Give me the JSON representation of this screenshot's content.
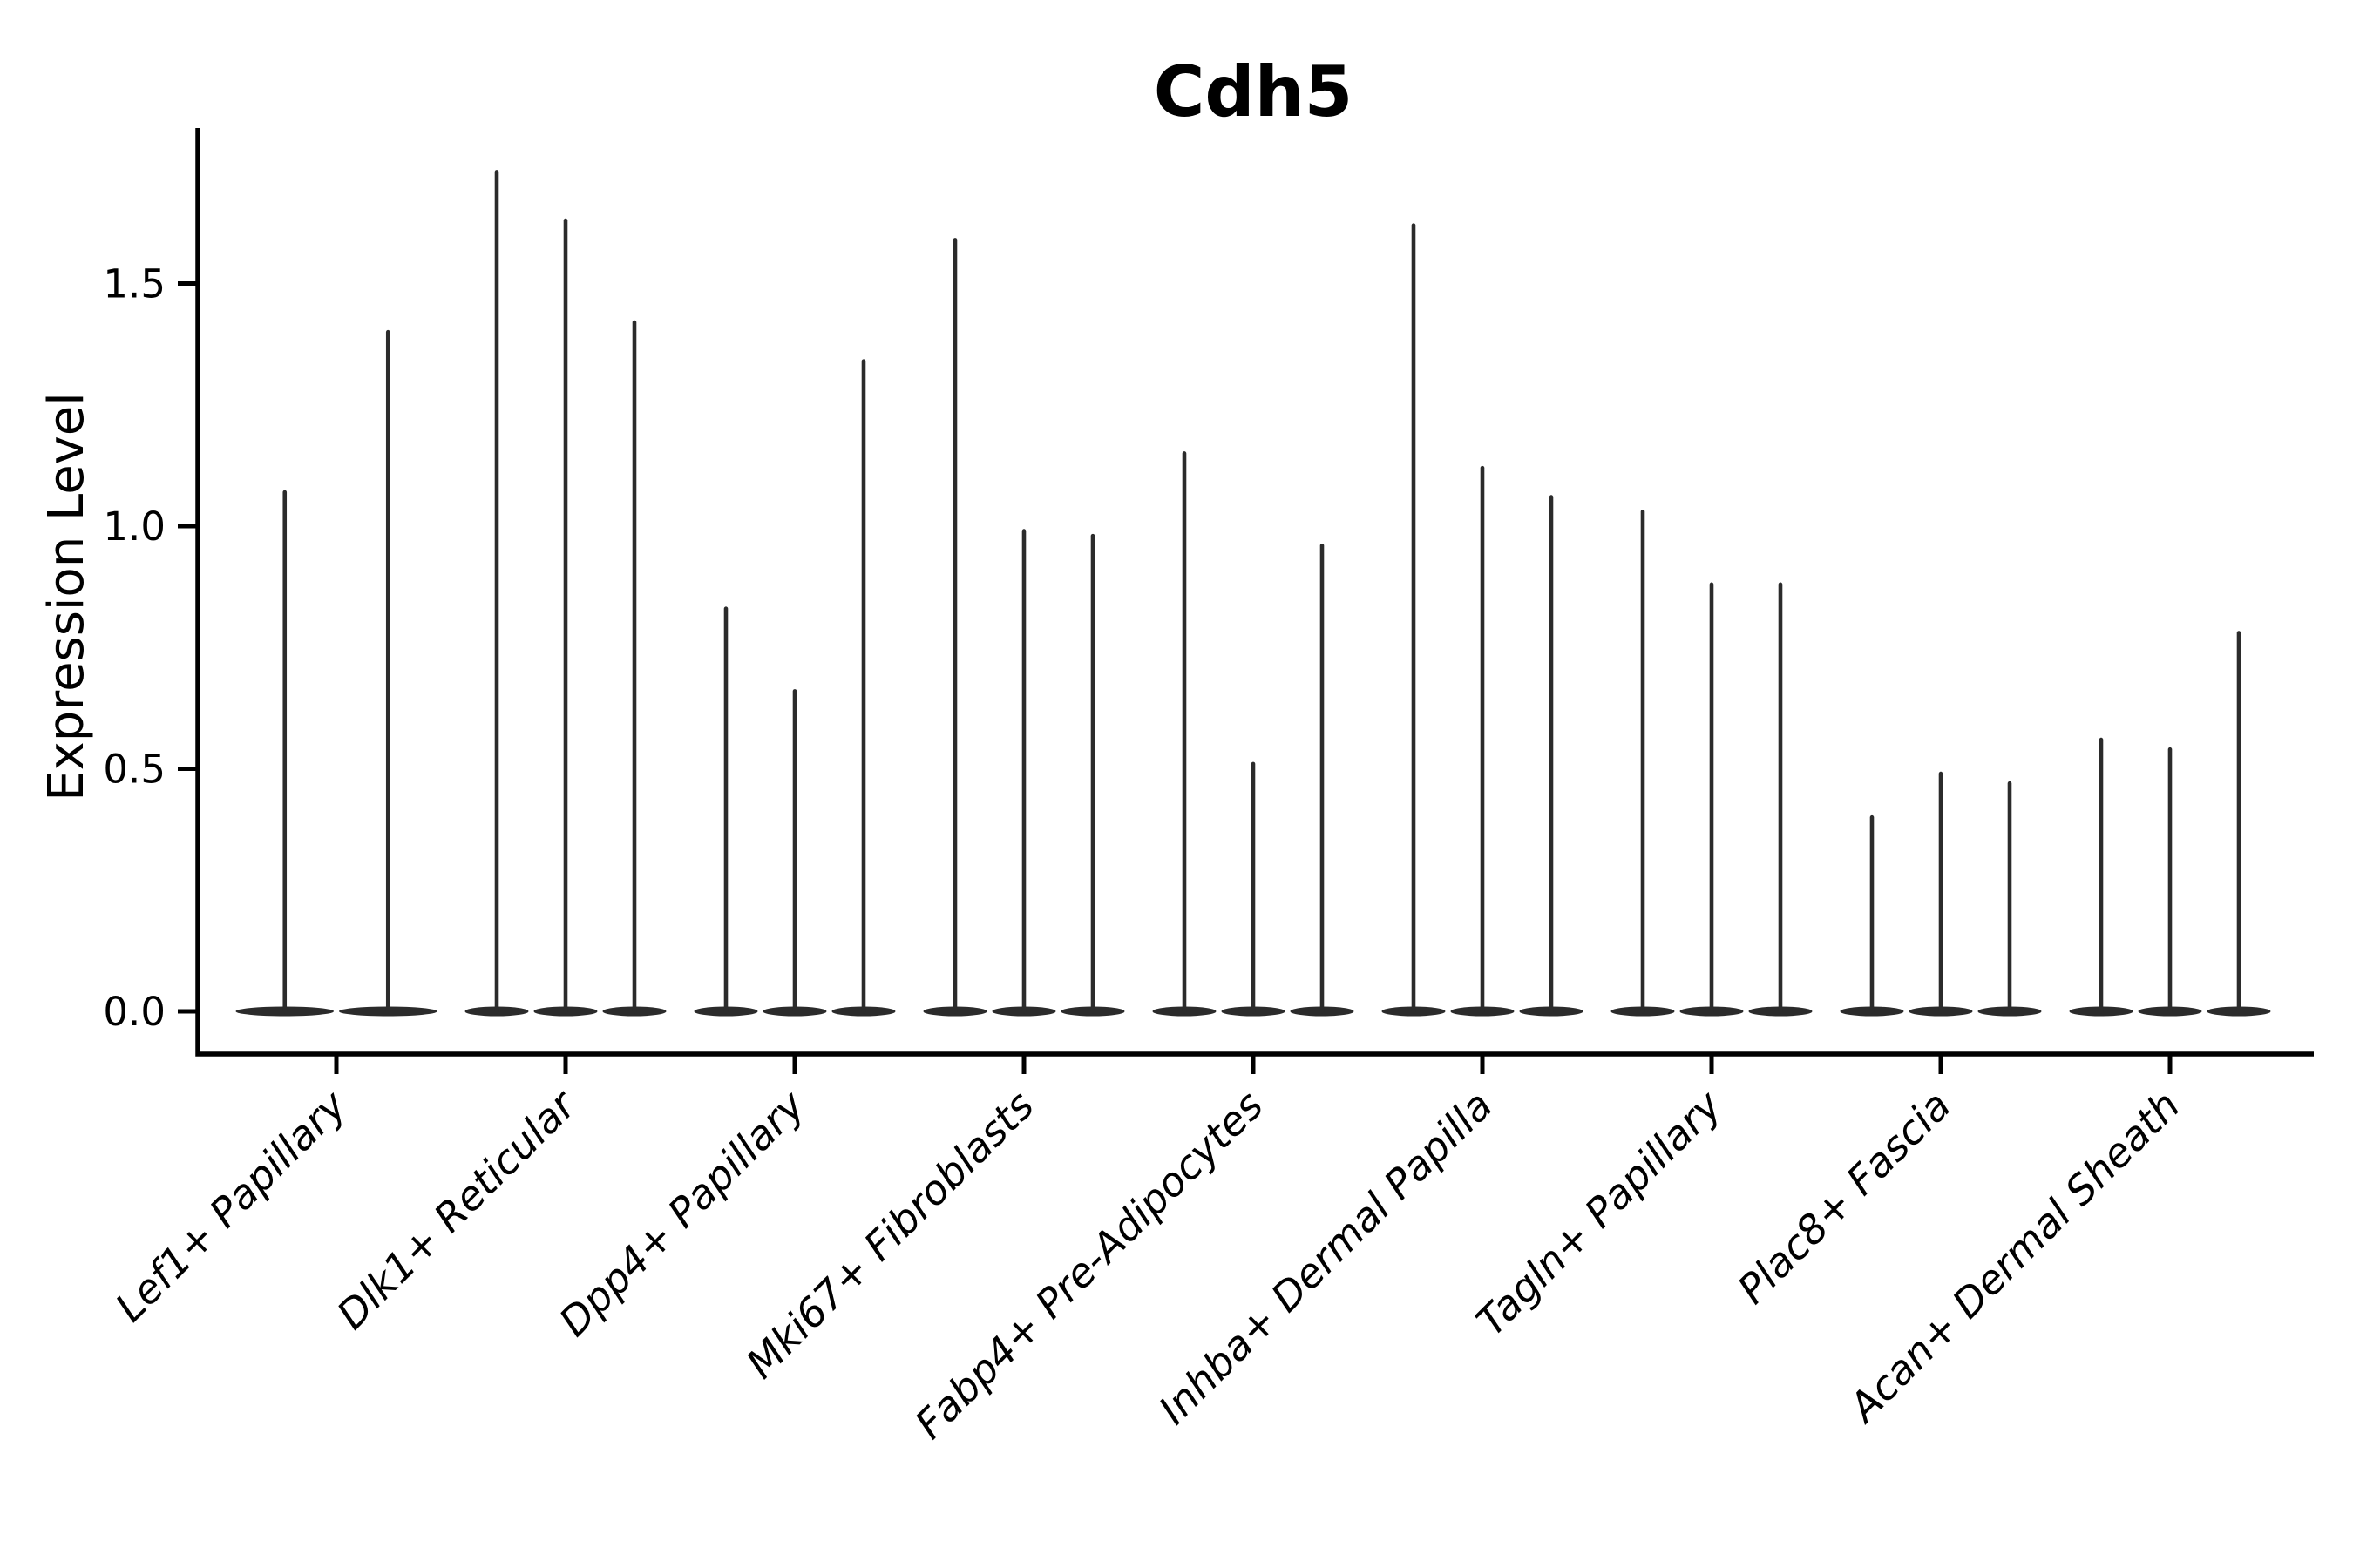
{
  "title": "Cdh5",
  "y_axis": {
    "label": "Expression Level",
    "tick_labels": [
      "0.0",
      "0.5",
      "1.0",
      "1.5"
    ],
    "tick_values": [
      0.0,
      0.5,
      1.0,
      1.5
    ]
  },
  "colors": {
    "violin": "#2b2b2b",
    "axis": "#000000",
    "background": "#ffffff"
  },
  "chart_data": {
    "type": "violin",
    "title": "Cdh5",
    "xlabel": "",
    "ylabel": "Expression Level",
    "ylim": [
      -0.09,
      1.82
    ],
    "yticks": [
      0.0,
      0.5,
      1.0,
      1.5
    ],
    "grid": false,
    "legend": false,
    "x_tick_rotation_deg": 45,
    "violin_style": "needle-thin, flat wide base at 0, all cells near zero with sparse high tails",
    "categories": [
      "Lef1+ Papillary",
      "Dlk1+ Reticular",
      "Dpp4+ Papillary",
      "Mki67+ Fibroblasts",
      "Fabp4+ Pre-Adipocytes",
      "Inhba+ Dermal Papilla",
      "Tagln+ Papillary",
      "Plac8+ Fascia",
      "Acan+ Dermal Sheath"
    ],
    "series": [
      {
        "name": "Lef1+ Papillary",
        "violin_max_values": [
          1.07,
          1.4
        ]
      },
      {
        "name": "Dlk1+ Reticular",
        "violin_max_values": [
          1.73,
          1.63,
          1.42
        ]
      },
      {
        "name": "Dpp4+ Papillary",
        "violin_max_values": [
          0.83,
          0.66,
          1.34
        ]
      },
      {
        "name": "Mki67+ Fibroblasts",
        "violin_max_values": [
          1.59,
          0.99,
          0.98
        ]
      },
      {
        "name": "Fabp4+ Pre-Adipocytes",
        "violin_max_values": [
          1.15,
          0.51,
          0.96
        ]
      },
      {
        "name": "Inhba+ Dermal Papilla",
        "violin_max_values": [
          1.62,
          1.12,
          1.06
        ]
      },
      {
        "name": "Tagln+ Papillary",
        "violin_max_values": [
          1.03,
          0.88,
          0.88
        ]
      },
      {
        "name": "Plac8+ Fascia",
        "violin_max_values": [
          0.4,
          0.49,
          0.47
        ]
      },
      {
        "name": "Acan+ Dermal Sheath",
        "violin_max_values": [
          0.56,
          0.54,
          0.78
        ]
      }
    ]
  }
}
